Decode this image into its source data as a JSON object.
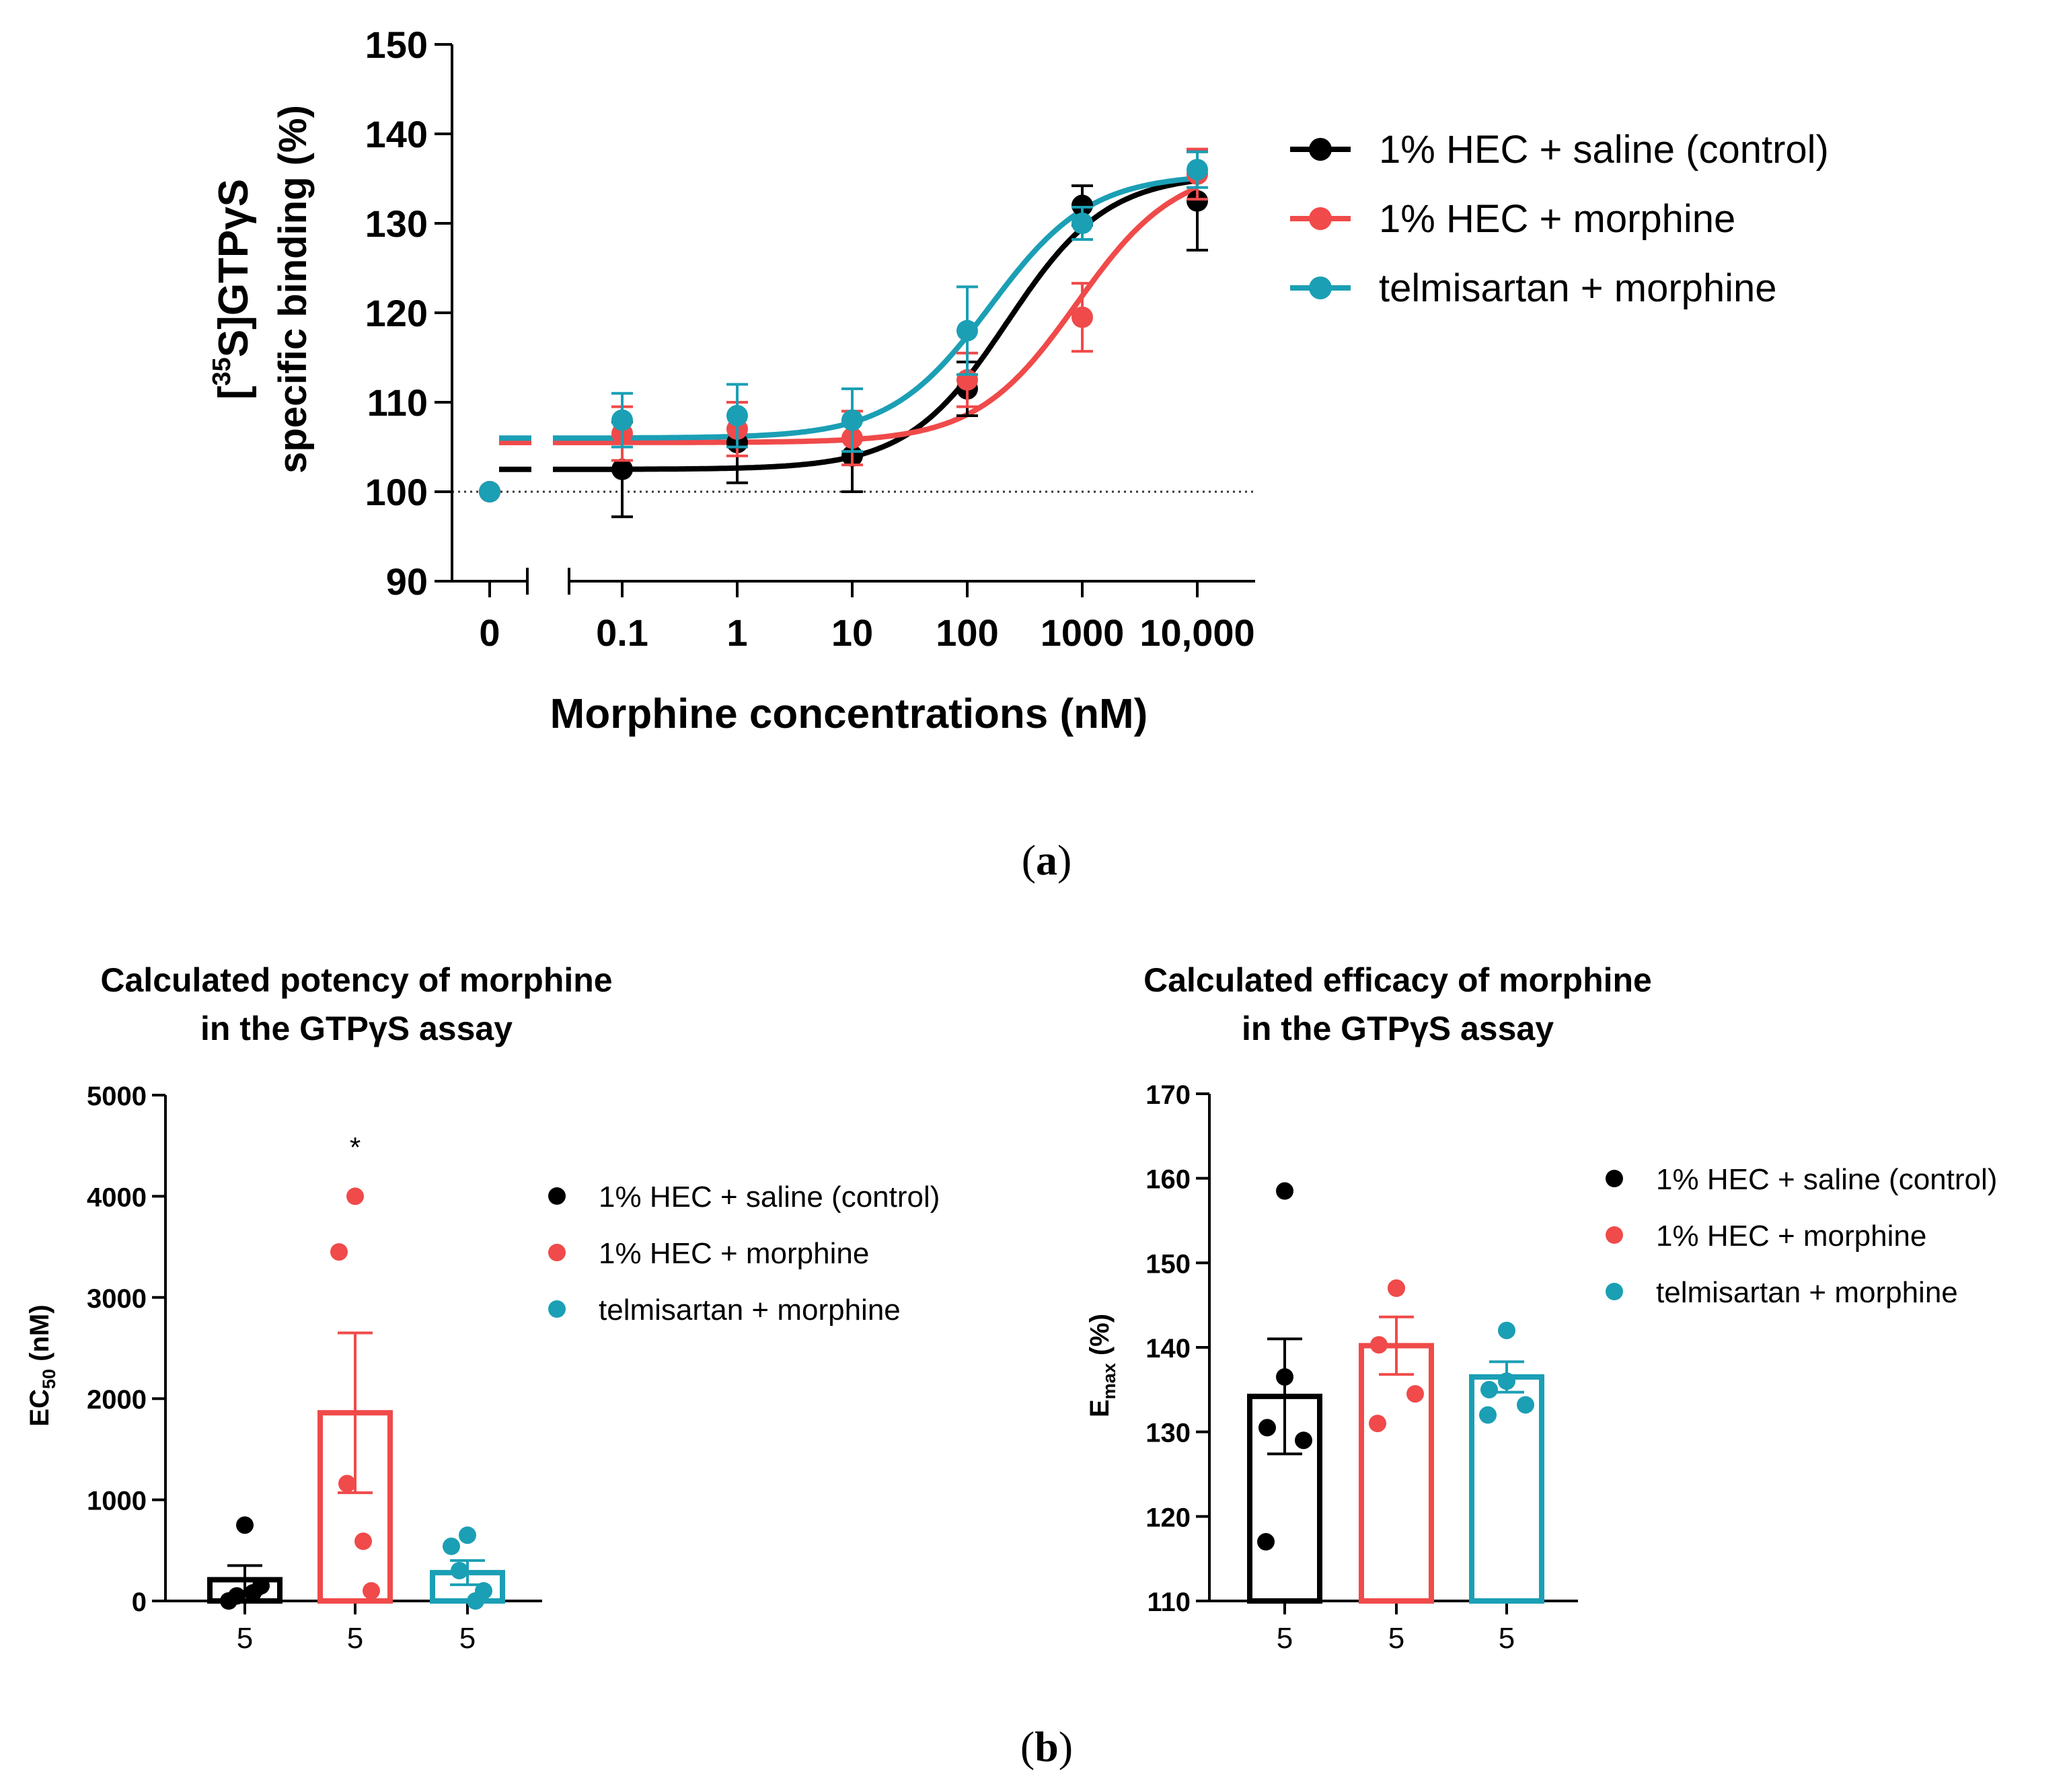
{
  "chart_data": [
    {
      "type": "line",
      "panel_label": "(a)",
      "panel_label_parts": [
        "(",
        "a",
        ")"
      ],
      "ylabel_lines": [
        "[35S]GTPγS",
        "specific binding (%)"
      ],
      "ylabel_parts": {
        "open": "[",
        "sup": "35",
        "rest": "S]GTPγS"
      },
      "xlabel": "Morphine concentrations (nM)",
      "x_ticks": [
        "0",
        "0.1",
        "1",
        "10",
        "100",
        "1000",
        "10,000"
      ],
      "y_ticks": [
        "90",
        "100",
        "110",
        "120",
        "130",
        "140",
        "150"
      ],
      "ylim": [
        90,
        150
      ],
      "x_scale": "log10 with axis break after 0",
      "x": [
        0,
        0.1,
        1,
        10,
        100,
        1000,
        10000
      ],
      "baseline_y": 100,
      "legend_position": "right",
      "series": [
        {
          "name": "1% HEC + saline (control)",
          "color": "#000000",
          "y": [
            100,
            102.5,
            105.5,
            104,
            111.5,
            132,
            132.5
          ],
          "err": [
            0,
            5.3,
            4.5,
            4,
            3,
            2.2,
            5.5
          ],
          "fit": {
            "bottom": 102.5,
            "top": 135.5,
            "log_ec50": 2.35
          }
        },
        {
          "name": "1% HEC + morphine",
          "color": "#f04a4a",
          "y": [
            100,
            106.5,
            107,
            106,
            112.5,
            119.5,
            135.5
          ],
          "err": [
            0,
            3,
            3,
            3,
            3,
            3.8,
            2.8
          ],
          "fit": {
            "bottom": 105.5,
            "top": 136.5,
            "log_ec50": 2.95
          }
        },
        {
          "name": "telmisartan + morphine",
          "color": "#1b9fb5",
          "y": [
            100,
            108,
            108.5,
            108,
            118,
            130,
            136
          ],
          "err": [
            0,
            3,
            3.5,
            3.5,
            4.9,
            1.8,
            2
          ],
          "fit": {
            "bottom": 106,
            "top": 135.5,
            "log_ec50": 2.2
          }
        }
      ]
    },
    {
      "type": "bar",
      "panel_label": "(b)",
      "panel_label_parts": [
        "(",
        "b",
        ")"
      ],
      "title_lines": [
        "Calculated potency of morphine",
        "in the GTPγS assay"
      ],
      "ylabel": "EC50 (nM)",
      "ylabel_parts": {
        "main": "EC",
        "sub": "50",
        "unit": " (nM)"
      },
      "ylim": [
        0,
        5000
      ],
      "y_ticks": [
        "0",
        "1000",
        "2000",
        "3000",
        "4000",
        "5000"
      ],
      "categories": [
        "5",
        "5",
        "5"
      ],
      "significance": "*",
      "legend_position": "right",
      "series": [
        {
          "name": "1% HEC + saline (control)",
          "color": "#000000",
          "mean": 210,
          "sem": 140,
          "points": [
            750,
            0,
            50,
            80,
            150
          ]
        },
        {
          "name": "1% HEC + morphine",
          "color": "#f04a4a",
          "mean": 1860,
          "sem": 790,
          "points": [
            4000,
            3450,
            1160,
            590,
            100
          ]
        },
        {
          "name": "telmisartan + morphine",
          "color": "#1b9fb5",
          "mean": 280,
          "sem": 120,
          "points": [
            650,
            540,
            300,
            0,
            100
          ]
        }
      ]
    },
    {
      "type": "bar",
      "title_lines": [
        "Calculated efficacy of morphine",
        "in the GTPγS assay"
      ],
      "ylabel": "Emax (%)",
      "ylabel_parts": {
        "main": "E",
        "sub": "max",
        "unit": " (%)"
      },
      "ylim": [
        110,
        170
      ],
      "y_ticks": [
        "110",
        "120",
        "130",
        "140",
        "150",
        "160",
        "170"
      ],
      "categories": [
        "5",
        "5",
        "5"
      ],
      "legend_position": "right",
      "series": [
        {
          "name": "1% HEC + saline (control)",
          "color": "#000000",
          "mean": 134.2,
          "sem": 6.8,
          "points": [
            158.5,
            136.5,
            130.5,
            129,
            117
          ]
        },
        {
          "name": "1% HEC + morphine",
          "color": "#f04a4a",
          "mean": 140.2,
          "sem": 3.4,
          "points": [
            147,
            147,
            140.3,
            134.5,
            131
          ]
        },
        {
          "name": "telmisartan + morphine",
          "color": "#1b9fb5",
          "mean": 136.5,
          "sem": 1.8,
          "points": [
            142,
            136,
            135,
            133.2,
            132
          ]
        }
      ]
    }
  ]
}
